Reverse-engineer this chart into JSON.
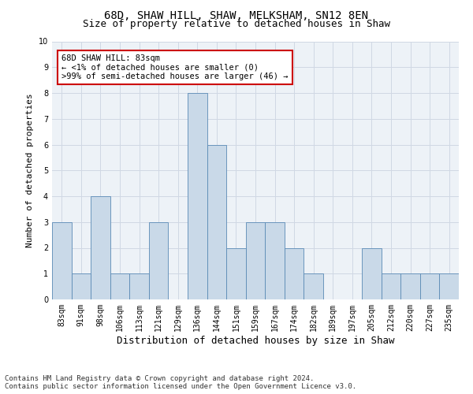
{
  "title": "68D, SHAW HILL, SHAW, MELKSHAM, SN12 8EN",
  "subtitle": "Size of property relative to detached houses in Shaw",
  "xlabel": "Distribution of detached houses by size in Shaw",
  "ylabel": "Number of detached properties",
  "categories": [
    "83sqm",
    "91sqm",
    "98sqm",
    "106sqm",
    "113sqm",
    "121sqm",
    "129sqm",
    "136sqm",
    "144sqm",
    "151sqm",
    "159sqm",
    "167sqm",
    "174sqm",
    "182sqm",
    "189sqm",
    "197sqm",
    "205sqm",
    "212sqm",
    "220sqm",
    "227sqm",
    "235sqm"
  ],
  "values": [
    3,
    1,
    4,
    1,
    1,
    3,
    0,
    8,
    6,
    2,
    3,
    3,
    2,
    1,
    0,
    0,
    2,
    1,
    1,
    1,
    1
  ],
  "bar_color": "#c9d9e8",
  "bar_edge_color": "#5a8ab5",
  "annotation_box_text": "68D SHAW HILL: 83sqm\n← <1% of detached houses are smaller (0)\n>99% of semi-detached houses are larger (46) →",
  "annotation_box_color": "#ffffff",
  "annotation_box_edge_color": "#cc0000",
  "ylim": [
    0,
    10
  ],
  "yticks": [
    0,
    1,
    2,
    3,
    4,
    5,
    6,
    7,
    8,
    9,
    10
  ],
  "grid_color": "#d0d8e4",
  "background_color": "#edf2f7",
  "footer_line1": "Contains HM Land Registry data © Crown copyright and database right 2024.",
  "footer_line2": "Contains public sector information licensed under the Open Government Licence v3.0.",
  "title_fontsize": 10,
  "subtitle_fontsize": 9,
  "xlabel_fontsize": 9,
  "ylabel_fontsize": 8,
  "tick_fontsize": 7,
  "footer_fontsize": 6.5,
  "annotation_fontsize": 7.5
}
